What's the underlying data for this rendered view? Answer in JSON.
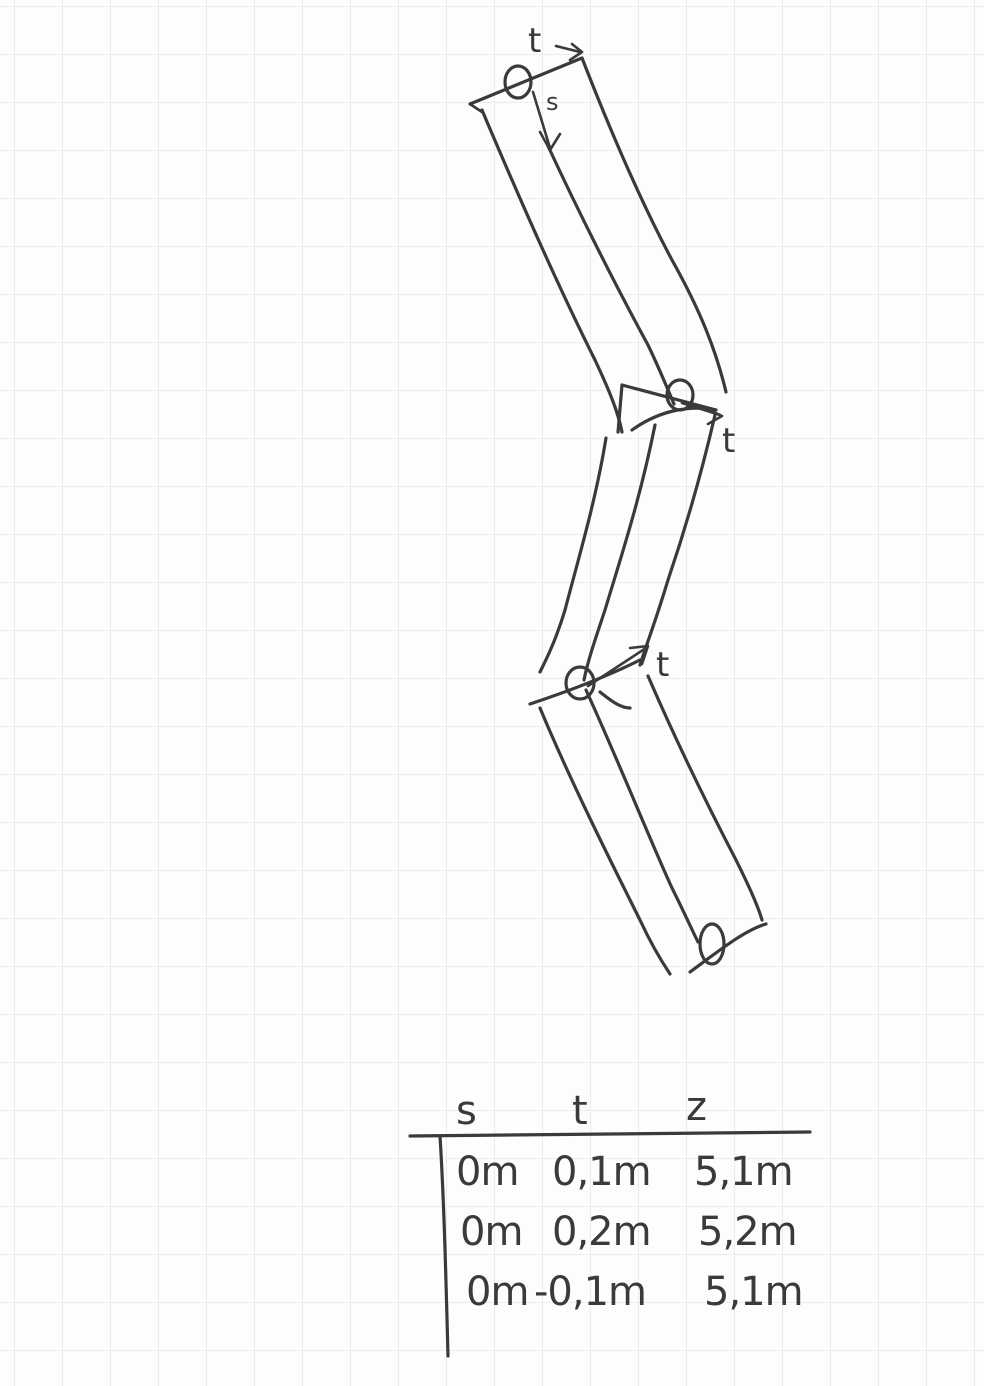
{
  "diagram": {
    "axis_labels": {
      "t_top": "t",
      "s_top": "s",
      "t_middle": "t",
      "t_lower": "t"
    }
  },
  "table": {
    "headers": [
      "s",
      "t",
      "z"
    ],
    "rows": [
      [
        "0m",
        "0,1m",
        "5,1m"
      ],
      [
        "0m",
        "0,2m",
        "5,2m"
      ],
      [
        "0m",
        "-0,1m",
        "5,1m"
      ]
    ]
  }
}
